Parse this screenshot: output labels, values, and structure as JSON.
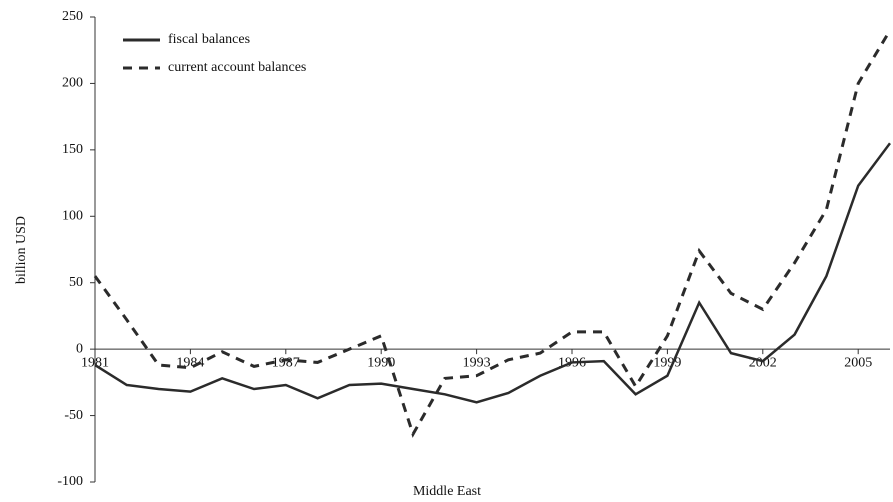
{
  "chart_data": {
    "type": "line",
    "x_label": "Middle East",
    "y_label": "billion USD",
    "x": [
      1981,
      1982,
      1983,
      1984,
      1985,
      1986,
      1987,
      1988,
      1989,
      1990,
      1991,
      1992,
      1993,
      1994,
      1995,
      1996,
      1997,
      1998,
      1999,
      2000,
      2001,
      2002,
      2003,
      2004,
      2005,
      2006
    ],
    "series": [
      {
        "name": "fiscal balances",
        "color": "#2b2b2b",
        "style": "solid",
        "values": [
          -12,
          -27,
          -30,
          -32,
          -22,
          -30,
          -27,
          -37,
          -27,
          -26,
          -30,
          -34,
          -40,
          -33,
          -20,
          -10,
          -9,
          -34,
          -20,
          35,
          -3,
          -9,
          11,
          55,
          123,
          155
        ]
      },
      {
        "name": "current account balances",
        "color": "#2b2b2b",
        "style": "dashed",
        "values": [
          55,
          22,
          -12,
          -14,
          -2,
          -13,
          -8,
          -10,
          0,
          10,
          -64,
          -22,
          -20,
          -8,
          -3,
          13,
          13,
          -28,
          10,
          74,
          42,
          30,
          65,
          105,
          200,
          240
        ]
      }
    ],
    "xlim": [
      1981,
      2006
    ],
    "xticks": [
      1981,
      1984,
      1987,
      1990,
      1993,
      1996,
      1999,
      2002,
      2005
    ],
    "ylim": [
      -100,
      250
    ],
    "yticks": [
      -100,
      -50,
      0,
      50,
      100,
      150,
      200,
      250
    ],
    "grid": false,
    "legend": "top-left"
  }
}
